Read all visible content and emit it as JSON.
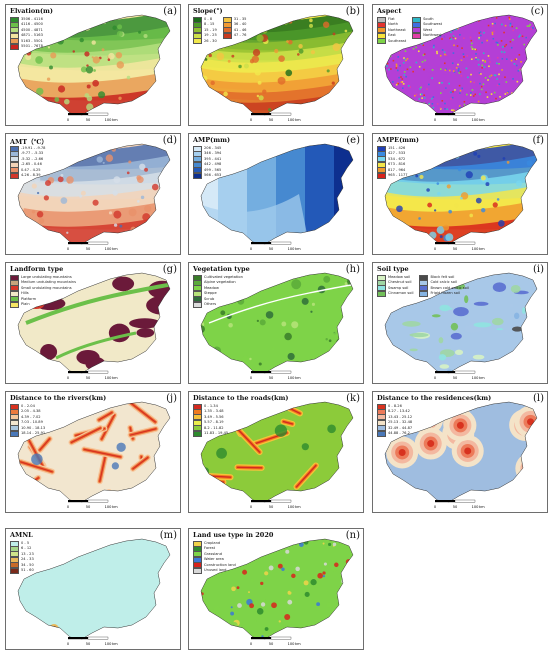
{
  "scale": {
    "ticks": [
      "0",
      "50",
      "100"
    ],
    "unit": "km"
  },
  "panels": [
    {
      "id": "elev",
      "title": "Elvation(m)",
      "label": "(a)",
      "style": "ramp",
      "cols": 1,
      "legend": [
        {
          "label": "3506 - 4116",
          "color": "#2e8b2e"
        },
        {
          "label": "4116 - 4500",
          "color": "#6cbf4a"
        },
        {
          "label": "4500 - 4871",
          "color": "#b5df7e"
        },
        {
          "label": "4871 - 5163",
          "color": "#f3e6a0"
        },
        {
          "label": "5163 - 5501",
          "color": "#e89b55"
        },
        {
          "label": "5501 - 7678",
          "color": "#c8231f"
        }
      ]
    },
    {
      "id": "slope",
      "title": "Slope(°)",
      "label": "(b)",
      "style": "ramp",
      "cols": 2,
      "legend": [
        {
          "label": "0 - 8",
          "color": "#1a6b1a"
        },
        {
          "label": "8 - 15",
          "color": "#4e9a2a"
        },
        {
          "label": "15 - 19",
          "color": "#8fbf30"
        },
        {
          "label": "19 - 25",
          "color": "#cde04a"
        },
        {
          "label": "26 - 30",
          "color": "#f1e84c"
        },
        {
          "label": "31 - 35",
          "color": "#f4c542"
        },
        {
          "label": "36 - 40",
          "color": "#f09a34"
        },
        {
          "label": "41 - 46",
          "color": "#e16a2a"
        },
        {
          "label": "47 - 76",
          "color": "#c8391f"
        }
      ]
    },
    {
      "id": "aspect",
      "title": "Aspect",
      "label": "(c)",
      "style": "speckle",
      "cols": 2,
      "legend": [
        {
          "label": "Flat",
          "color": "#bdbdbd"
        },
        {
          "label": "North",
          "color": "#e3342f"
        },
        {
          "label": "Northeast",
          "color": "#f39a2b"
        },
        {
          "label": "East",
          "color": "#f7e23b"
        },
        {
          "label": "Southeast",
          "color": "#7ed348"
        },
        {
          "label": "South",
          "color": "#2fb8c6"
        },
        {
          "label": "Southwest",
          "color": "#3f6fe0"
        },
        {
          "label": "West",
          "color": "#b43fd6"
        },
        {
          "label": "Northwest",
          "color": "#e03fa8"
        }
      ]
    },
    {
      "id": "amt",
      "title": "AMT（℃）",
      "label": "(d)",
      "style": "ramp",
      "cols": 1,
      "legend": [
        {
          "label": "-19.91 - -9.78",
          "color": "#4b6fb0"
        },
        {
          "label": "-9.77 - -5.33",
          "color": "#9bb7d8"
        },
        {
          "label": "-5.32 - -2.66",
          "color": "#d6dfe8"
        },
        {
          "label": "-2.65 - 0.46",
          "color": "#f2d3b8"
        },
        {
          "label": "0.47 - 4.25",
          "color": "#e9916a"
        },
        {
          "label": "4.26 - 8.39",
          "color": "#d2372c"
        }
      ]
    },
    {
      "id": "amp",
      "title": "AMP(mm)",
      "label": "(e)",
      "style": "zones",
      "cols": 1,
      "legend": [
        {
          "label": "206 - 345",
          "color": "#d5e9f7"
        },
        {
          "label": "346 - 394",
          "color": "#a6cfee"
        },
        {
          "label": "395 - 441",
          "color": "#74aee0"
        },
        {
          "label": "442 - 498",
          "color": "#4689d0"
        },
        {
          "label": "499 - 565",
          "color": "#2359b8"
        },
        {
          "label": "566 - 653",
          "color": "#0d2f8f"
        }
      ]
    },
    {
      "id": "ampe",
      "title": "AMPE(mm)",
      "label": "(f)",
      "style": "ramp",
      "cols": 1,
      "legend": [
        {
          "label": "151 - 426",
          "color": "#1f3fb5"
        },
        {
          "label": "427 - 533",
          "color": "#3a8ae0"
        },
        {
          "label": "534 - 672",
          "color": "#79d7ef"
        },
        {
          "label": "673 - 816",
          "color": "#f3e64a"
        },
        {
          "label": "817 - 964",
          "color": "#f09a2e"
        },
        {
          "label": "965 - 1177",
          "color": "#d8231c"
        }
      ]
    },
    {
      "id": "landform",
      "title": "Landform type",
      "label": "(g)",
      "style": "landform",
      "cols": 1,
      "legend": [
        {
          "label": "Large undulating mountains",
          "color": "#6b1a3a"
        },
        {
          "label": "Medium undulating mountains",
          "color": "#c7a67c"
        },
        {
          "label": "Small undulating mountains",
          "color": "#d6382a"
        },
        {
          "label": "Hills",
          "color": "#f1e9c8"
        },
        {
          "label": "Platform",
          "color": "#6cc04a"
        },
        {
          "label": "Plain",
          "color": "#f5e663"
        }
      ]
    },
    {
      "id": "veg",
      "title": "Vegetation type",
      "label": "(h)",
      "style": "veg",
      "cols": 1,
      "legend": [
        {
          "label": "Cultivated vegetation",
          "color": "#3a7d2a"
        },
        {
          "label": "Alpine vegetation",
          "color": "#5aaa3a"
        },
        {
          "label": "Meadow",
          "color": "#7ed348"
        },
        {
          "label": "Steppe",
          "color": "#b6e37a"
        },
        {
          "label": "Scrub",
          "color": "#2f6e3a"
        },
        {
          "label": "Others",
          "color": "#dcdcdc"
        }
      ]
    },
    {
      "id": "soil",
      "title": "Soil type",
      "label": "(i)",
      "style": "soil",
      "cols": 2,
      "legend": [
        {
          "label": "Meadow soil",
          "color": "#d6f2c4"
        },
        {
          "label": "Chestnut soil",
          "color": "#9fd6a4"
        },
        {
          "label": "Swamp soil",
          "color": "#8fe3e0"
        },
        {
          "label": "Cinnamon soil",
          "color": "#72c05a"
        },
        {
          "label": "Black felt soil",
          "color": "#4a4a4a"
        },
        {
          "label": "Cold calcic soil",
          "color": "#a8c8e8"
        },
        {
          "label": "Brown cold calcic soil",
          "color": "#5a6fd0"
        },
        {
          "label": "Frigid frozen soil",
          "color": "#86b4e2"
        }
      ]
    },
    {
      "id": "rivers",
      "title": "Distance to the rivers(km)",
      "label": "(j)",
      "style": "buffer",
      "cols": 1,
      "legend": [
        {
          "label": "0 - 2.04",
          "color": "#d8321f"
        },
        {
          "label": "2.05 - 4.38",
          "color": "#ec7a3e"
        },
        {
          "label": "4.39 - 7.02",
          "color": "#f6c79c"
        },
        {
          "label": "7.03 - 10.89",
          "color": "#f2e6cf"
        },
        {
          "label": "10.90 - 18.13",
          "color": "#a9c6df"
        },
        {
          "label": "18.14 - 25.91",
          "color": "#4a78b8"
        }
      ]
    },
    {
      "id": "roads",
      "title": "Distance to the roads(km)",
      "label": "(k)",
      "style": "roads",
      "cols": 1,
      "legend": [
        {
          "label": "0 - 1.34",
          "color": "#d42a1f"
        },
        {
          "label": "1.35 - 3.48",
          "color": "#f07a1f"
        },
        {
          "label": "3.49 - 5.56",
          "color": "#f6c23a"
        },
        {
          "label": "5.57 - 8.19",
          "color": "#eaed4a"
        },
        {
          "label": "8.2 - 11.82",
          "color": "#8ccb3a"
        },
        {
          "label": "11.83 - 19.45",
          "color": "#2e8b2e"
        }
      ]
    },
    {
      "id": "resid",
      "title": "Distance to the residences(km)",
      "label": "(l)",
      "style": "resid",
      "cols": 1,
      "legend": [
        {
          "label": "0 - 8.26",
          "color": "#d8321f"
        },
        {
          "label": "8.27 - 13.42",
          "color": "#ec7a5a"
        },
        {
          "label": "13.43 - 25.12",
          "color": "#f3b8a0"
        },
        {
          "label": "25.13 - 32.48",
          "color": "#f4e3c8"
        },
        {
          "label": "32.49 - 44.87",
          "color": "#9fbde0"
        },
        {
          "label": "44.88 - 76.2",
          "color": "#4a78b8"
        }
      ]
    },
    {
      "id": "amnl",
      "title": "AMNL",
      "label": "(m)",
      "style": "amnl",
      "cols": 1,
      "legend": [
        {
          "label": "0 - 5",
          "color": "#bfeee9"
        },
        {
          "label": "6 - 12",
          "color": "#a6d68a"
        },
        {
          "label": "13 - 23",
          "color": "#cfe58a"
        },
        {
          "label": "24 - 33",
          "color": "#e9b85a"
        },
        {
          "label": "34 - 50",
          "color": "#c96b2a"
        },
        {
          "label": "51 - 60",
          "color": "#7a2a1a"
        }
      ]
    },
    {
      "id": "landuse",
      "title": "Land use type in 2020",
      "label": "(n)",
      "style": "landuse",
      "cols": 1,
      "legend": [
        {
          "label": "Cropland",
          "color": "#f0d34a"
        },
        {
          "label": "Forest",
          "color": "#2e8b2e"
        },
        {
          "label": "Grassland",
          "color": "#7ed348"
        },
        {
          "label": "Water area",
          "color": "#3a78d8"
        },
        {
          "label": "Construction land",
          "color": "#d8231c"
        },
        {
          "label": "Unused land",
          "color": "#d8d8d8"
        }
      ]
    }
  ]
}
